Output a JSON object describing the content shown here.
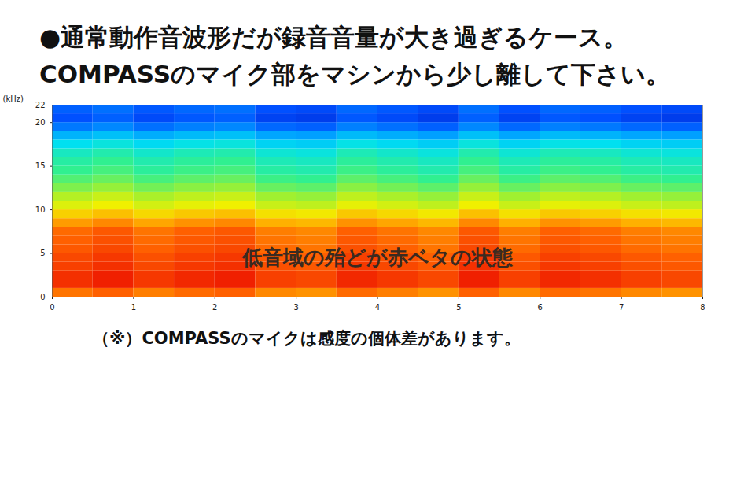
{
  "chart_data": {
    "type": "heatmap",
    "title": "●通常動作音波形だが録音音量が大き過ぎるケース。",
    "subtitle": "COMPASSのマイク部をマシンから少し離して下さい。",
    "y_label": "(kHz)",
    "annotations": [
      {
        "text": "低音域の殆どが赤ベタの状態",
        "x": 4,
        "y": 4.5
      }
    ],
    "caption": "（※）COMPASSのマイクは感度の個体差があります。",
    "xlim": [
      0,
      8
    ],
    "xticks": [
      0,
      1,
      2,
      3,
      4,
      5,
      6,
      7,
      8
    ],
    "ylim": [
      0,
      22
    ],
    "yticks": [
      0,
      5,
      10,
      15,
      20,
      22
    ],
    "zlim": [
      0,
      100
    ],
    "time_bins": [
      0,
      0.5,
      1,
      1.5,
      2,
      2.5,
      3,
      3.5,
      4,
      4.5,
      5,
      5.5,
      6,
      6.5,
      7,
      7.5,
      8
    ],
    "freq_bins": [
      0,
      1,
      2,
      3,
      4,
      5,
      6,
      7,
      8,
      9,
      10,
      11,
      12,
      13,
      14,
      15,
      16,
      17,
      18,
      19,
      20,
      21,
      22
    ],
    "levels": [
      [
        82,
        84,
        81,
        83,
        84,
        80,
        79,
        83,
        81,
        79,
        84,
        80,
        83,
        82,
        80,
        79
      ],
      [
        90,
        92,
        89,
        91,
        92,
        88,
        87,
        91,
        89,
        87,
        92,
        88,
        91,
        90,
        88,
        87
      ],
      [
        90,
        92,
        89,
        91,
        92,
        88,
        87,
        91,
        89,
        87,
        92,
        88,
        91,
        90,
        88,
        87
      ],
      [
        88,
        90,
        87,
        89,
        90,
        86,
        85,
        89,
        87,
        85,
        90,
        86,
        89,
        88,
        86,
        85
      ],
      [
        87,
        89,
        86,
        88,
        89,
        85,
        84,
        88,
        86,
        84,
        89,
        85,
        88,
        87,
        85,
        84
      ],
      [
        85,
        87,
        84,
        86,
        87,
        83,
        82,
        86,
        84,
        82,
        87,
        83,
        86,
        85,
        83,
        82
      ],
      [
        84,
        86,
        83,
        85,
        86,
        82,
        81,
        85,
        83,
        81,
        86,
        82,
        85,
        84,
        82,
        81
      ],
      [
        83,
        85,
        82,
        84,
        85,
        81,
        80,
        84,
        82,
        80,
        85,
        81,
        84,
        83,
        81,
        80
      ],
      [
        78,
        80,
        77,
        79,
        80,
        76,
        75,
        79,
        77,
        75,
        80,
        76,
        79,
        78,
        76,
        75
      ],
      [
        72,
        74,
        71,
        73,
        74,
        70,
        69,
        73,
        71,
        69,
        74,
        70,
        73,
        72,
        70,
        69
      ],
      [
        66,
        68,
        65,
        67,
        68,
        64,
        63,
        67,
        65,
        63,
        68,
        64,
        67,
        66,
        64,
        63
      ],
      [
        62,
        64,
        61,
        63,
        64,
        60,
        59,
        63,
        61,
        59,
        64,
        60,
        63,
        62,
        60,
        59
      ],
      [
        57,
        59,
        56,
        58,
        59,
        55,
        54,
        58,
        56,
        54,
        59,
        55,
        58,
        57,
        55,
        54
      ],
      [
        53,
        55,
        52,
        54,
        55,
        51,
        50,
        54,
        52,
        50,
        55,
        51,
        54,
        53,
        51,
        50
      ],
      [
        50,
        52,
        49,
        51,
        52,
        48,
        47,
        51,
        49,
        47,
        52,
        48,
        51,
        50,
        48,
        47
      ],
      [
        48,
        50,
        47,
        49,
        50,
        46,
        45,
        49,
        47,
        45,
        50,
        46,
        49,
        48,
        46,
        45
      ],
      [
        45,
        47,
        44,
        46,
        47,
        43,
        42,
        46,
        44,
        42,
        47,
        43,
        46,
        45,
        43,
        42
      ],
      [
        40,
        42,
        39,
        41,
        42,
        38,
        37,
        41,
        39,
        37,
        42,
        38,
        41,
        40,
        38,
        37
      ],
      [
        33,
        35,
        32,
        34,
        35,
        31,
        30,
        34,
        32,
        30,
        35,
        31,
        34,
        33,
        31,
        30
      ],
      [
        25,
        27,
        24,
        26,
        27,
        23,
        22,
        26,
        24,
        22,
        27,
        23,
        26,
        25,
        23,
        22
      ],
      [
        20,
        22,
        19,
        21,
        22,
        18,
        17,
        21,
        19,
        17,
        22,
        18,
        21,
        20,
        18,
        17
      ],
      [
        22,
        24,
        21,
        23,
        24,
        20,
        19,
        23,
        21,
        19,
        24,
        20,
        23,
        22,
        20,
        19
      ]
    ]
  }
}
